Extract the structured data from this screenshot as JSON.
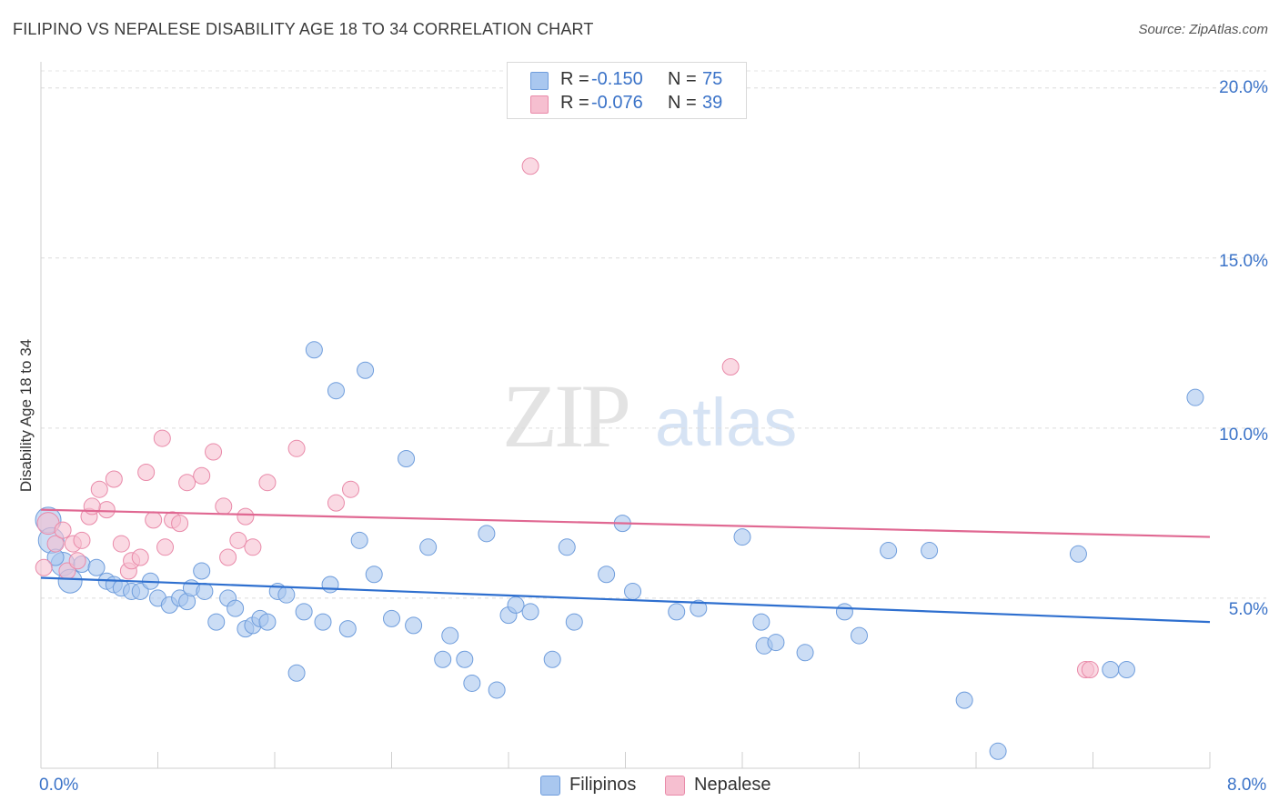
{
  "header": {
    "title": "FILIPINO VS NEPALESE DISABILITY AGE 18 TO 34 CORRELATION CHART",
    "source": "Source: ZipAtlas.com"
  },
  "watermark": {
    "zip": "ZIP",
    "atlas": "atlas"
  },
  "legend": {
    "rows": [
      {
        "r_label": "R =",
        "r_value": "-0.150",
        "n_label": "N =",
        "n_value": "75",
        "color": "#a9c7ef",
        "border": "#6f9ddc"
      },
      {
        "r_label": "R =",
        "r_value": "-0.076",
        "n_label": "N =",
        "n_value": "39",
        "color": "#f6bfd0",
        "border": "#e98aa9"
      }
    ]
  },
  "chart_data": {
    "type": "scatter",
    "title": "FILIPINO VS NEPALESE DISABILITY AGE 18 TO 34 CORRELATION CHART",
    "xlabel": "",
    "ylabel": "Disability Age 18 to 34",
    "xlim": [
      0,
      8
    ],
    "ylim": [
      0,
      20.5
    ],
    "x_tick_labels": [
      "0.0%",
      "8.0%"
    ],
    "y_ticks": [
      5,
      10,
      15,
      20
    ],
    "y_tick_labels": [
      "5.0%",
      "10.0%",
      "15.0%",
      "20.0%"
    ],
    "grid": true,
    "series": [
      {
        "name": "Filipinos",
        "color": "#a9c7ef",
        "line_color": "#2e6fcf",
        "trend": {
          "x": [
            0,
            8
          ],
          "y": [
            5.6,
            4.3
          ]
        },
        "points": [
          [
            0.05,
            7.3,
            14
          ],
          [
            0.07,
            6.7,
            14
          ],
          [
            0.15,
            6.0,
            13
          ],
          [
            0.2,
            5.5,
            13
          ],
          [
            0.28,
            6.0,
            9
          ],
          [
            0.38,
            5.9,
            9
          ],
          [
            0.45,
            5.5,
            9
          ],
          [
            0.5,
            5.4,
            9
          ],
          [
            0.55,
            5.3,
            9
          ],
          [
            0.62,
            5.2,
            9
          ],
          [
            0.68,
            5.2,
            9
          ],
          [
            0.75,
            5.5,
            9
          ],
          [
            0.8,
            5.0,
            9
          ],
          [
            0.88,
            4.8,
            9
          ],
          [
            0.95,
            5.0,
            9
          ],
          [
            1.0,
            4.9,
            9
          ],
          [
            1.03,
            5.3,
            9
          ],
          [
            1.1,
            5.8,
            9
          ],
          [
            1.12,
            5.2,
            9
          ],
          [
            1.2,
            4.3,
            9
          ],
          [
            1.28,
            5.0,
            9
          ],
          [
            1.33,
            4.7,
            9
          ],
          [
            1.4,
            4.1,
            9
          ],
          [
            1.45,
            4.2,
            9
          ],
          [
            1.5,
            4.4,
            9
          ],
          [
            1.55,
            4.3,
            9
          ],
          [
            1.62,
            5.2,
            9
          ],
          [
            1.68,
            5.1,
            9
          ],
          [
            1.75,
            2.8,
            9
          ],
          [
            1.8,
            4.6,
            9
          ],
          [
            1.87,
            12.3,
            9
          ],
          [
            1.93,
            4.3,
            9
          ],
          [
            1.98,
            5.4,
            9
          ],
          [
            2.02,
            11.1,
            9
          ],
          [
            2.1,
            4.1,
            9
          ],
          [
            2.18,
            6.7,
            9
          ],
          [
            2.22,
            11.7,
            9
          ],
          [
            2.28,
            5.7,
            9
          ],
          [
            2.4,
            4.4,
            9
          ],
          [
            2.5,
            9.1,
            9
          ],
          [
            2.55,
            4.2,
            9
          ],
          [
            2.65,
            6.5,
            9
          ],
          [
            2.75,
            3.2,
            9
          ],
          [
            2.8,
            3.9,
            9
          ],
          [
            2.9,
            3.2,
            9
          ],
          [
            2.95,
            2.5,
            9
          ],
          [
            3.05,
            6.9,
            9
          ],
          [
            3.12,
            2.3,
            9
          ],
          [
            3.2,
            4.5,
            9
          ],
          [
            3.25,
            4.8,
            9
          ],
          [
            3.35,
            4.6,
            9
          ],
          [
            3.5,
            3.2,
            9
          ],
          [
            3.6,
            6.5,
            9
          ],
          [
            3.65,
            4.3,
            9
          ],
          [
            3.87,
            5.7,
            9
          ],
          [
            3.98,
            7.2,
            9
          ],
          [
            4.05,
            5.2,
            9
          ],
          [
            4.35,
            4.6,
            9
          ],
          [
            4.5,
            4.7,
            9
          ],
          [
            4.8,
            6.8,
            9
          ],
          [
            4.93,
            4.3,
            9
          ],
          [
            4.95,
            3.6,
            9
          ],
          [
            5.03,
            3.7,
            9
          ],
          [
            5.23,
            3.4,
            9
          ],
          [
            5.5,
            4.6,
            9
          ],
          [
            5.6,
            3.9,
            9
          ],
          [
            5.8,
            6.4,
            9
          ],
          [
            6.08,
            6.4,
            9
          ],
          [
            6.32,
            2.0,
            9
          ],
          [
            6.55,
            0.5,
            9
          ],
          [
            7.1,
            6.3,
            9
          ],
          [
            7.32,
            2.9,
            9
          ],
          [
            7.43,
            2.9,
            9
          ],
          [
            7.9,
            10.9,
            9
          ],
          [
            0.1,
            6.2,
            9
          ]
        ]
      },
      {
        "name": "Nepalese",
        "color": "#f6bfd0",
        "line_color": "#e06892",
        "trend": {
          "x": [
            0,
            8
          ],
          "y": [
            7.6,
            6.8
          ]
        },
        "points": [
          [
            0.02,
            5.9,
            9
          ],
          [
            0.05,
            7.2,
            12
          ],
          [
            0.1,
            6.6,
            9
          ],
          [
            0.15,
            7.0,
            9
          ],
          [
            0.18,
            5.8,
            9
          ],
          [
            0.22,
            6.6,
            9
          ],
          [
            0.28,
            6.7,
            9
          ],
          [
            0.33,
            7.4,
            9
          ],
          [
            0.4,
            8.2,
            9
          ],
          [
            0.45,
            7.6,
            9
          ],
          [
            0.5,
            8.5,
            9
          ],
          [
            0.55,
            6.6,
            9
          ],
          [
            0.6,
            5.8,
            9
          ],
          [
            0.62,
            6.1,
            9
          ],
          [
            0.68,
            6.2,
            9
          ],
          [
            0.72,
            8.7,
            9
          ],
          [
            0.77,
            7.3,
            9
          ],
          [
            0.83,
            9.7,
            9
          ],
          [
            0.85,
            6.5,
            9
          ],
          [
            0.9,
            7.3,
            9
          ],
          [
            0.95,
            7.2,
            9
          ],
          [
            1.0,
            8.4,
            9
          ],
          [
            1.1,
            8.6,
            9
          ],
          [
            1.18,
            9.3,
            9
          ],
          [
            1.25,
            7.7,
            9
          ],
          [
            1.28,
            6.2,
            9
          ],
          [
            1.35,
            6.7,
            9
          ],
          [
            1.4,
            7.4,
            9
          ],
          [
            1.45,
            6.5,
            9
          ],
          [
            1.55,
            8.4,
            9
          ],
          [
            1.75,
            9.4,
            9
          ],
          [
            2.02,
            7.8,
            9
          ],
          [
            2.12,
            8.2,
            9
          ],
          [
            3.35,
            17.7,
            9
          ],
          [
            4.72,
            11.8,
            9
          ],
          [
            7.15,
            2.9,
            9
          ],
          [
            7.18,
            2.9,
            9
          ],
          [
            0.25,
            6.1,
            9
          ],
          [
            0.35,
            7.7,
            9
          ]
        ]
      }
    ]
  }
}
